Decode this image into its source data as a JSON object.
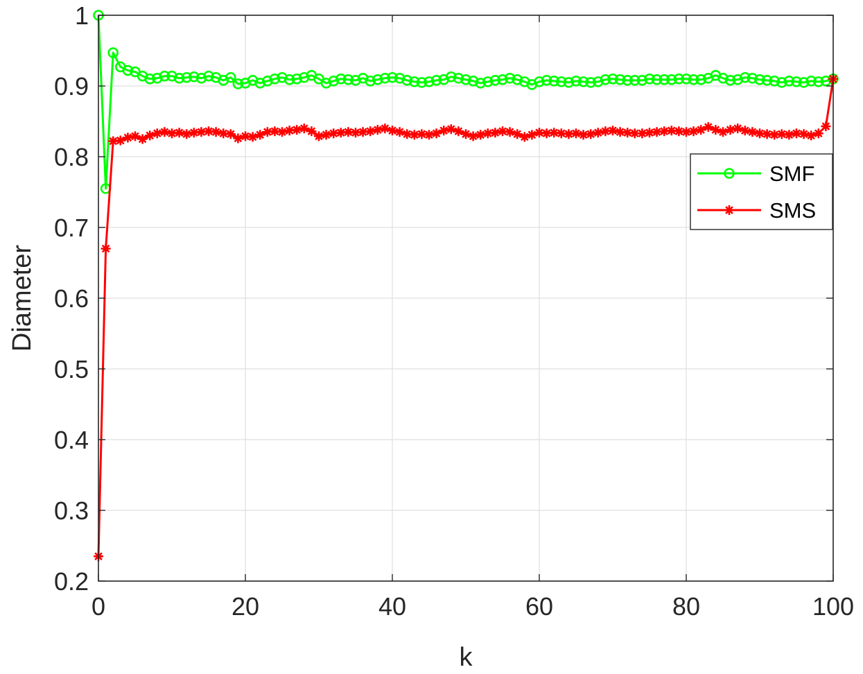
{
  "chart_data": {
    "type": "line",
    "title": "",
    "xlabel": "k",
    "ylabel": "Diameter",
    "xlim": [
      0,
      100
    ],
    "ylim": [
      0.2,
      1
    ],
    "xticks": [
      0,
      20,
      40,
      60,
      80,
      100
    ],
    "xtick_labels": [
      "0",
      "20",
      "40",
      "60",
      "80",
      "100"
    ],
    "yticks": [
      0.2,
      0.3,
      0.4,
      0.5,
      0.6,
      0.7,
      0.8,
      0.9,
      1
    ],
    "ytick_labels": [
      "0.2",
      "0.3",
      "0.4",
      "0.5",
      "0.6",
      "0.7",
      "0.8",
      "0.9",
      "1"
    ],
    "grid": true,
    "legend": "right",
    "x": [
      0,
      1,
      2,
      3,
      4,
      5,
      6,
      7,
      8,
      9,
      10,
      11,
      12,
      13,
      14,
      15,
      16,
      17,
      18,
      19,
      20,
      21,
      22,
      23,
      24,
      25,
      26,
      27,
      28,
      29,
      30,
      31,
      32,
      33,
      34,
      35,
      36,
      37,
      38,
      39,
      40,
      41,
      42,
      43,
      44,
      45,
      46,
      47,
      48,
      49,
      50,
      51,
      52,
      53,
      54,
      55,
      56,
      57,
      58,
      59,
      60,
      61,
      62,
      63,
      64,
      65,
      66,
      67,
      68,
      69,
      70,
      71,
      72,
      73,
      74,
      75,
      76,
      77,
      78,
      79,
      80,
      81,
      82,
      83,
      84,
      85,
      86,
      87,
      88,
      89,
      90,
      91,
      92,
      93,
      94,
      95,
      96,
      97,
      98,
      99,
      100
    ],
    "series": [
      {
        "name": "SMF",
        "color": "#00ff00",
        "marker": "circle",
        "values": [
          1.0,
          0.755,
          0.947,
          0.927,
          0.922,
          0.92,
          0.914,
          0.91,
          0.911,
          0.914,
          0.914,
          0.911,
          0.912,
          0.913,
          0.911,
          0.914,
          0.912,
          0.908,
          0.912,
          0.903,
          0.904,
          0.908,
          0.904,
          0.907,
          0.91,
          0.912,
          0.909,
          0.91,
          0.912,
          0.915,
          0.91,
          0.904,
          0.907,
          0.91,
          0.909,
          0.908,
          0.911,
          0.907,
          0.909,
          0.911,
          0.912,
          0.911,
          0.908,
          0.906,
          0.905,
          0.906,
          0.908,
          0.909,
          0.913,
          0.911,
          0.909,
          0.907,
          0.904,
          0.906,
          0.908,
          0.909,
          0.911,
          0.909,
          0.906,
          0.902,
          0.906,
          0.908,
          0.907,
          0.906,
          0.905,
          0.907,
          0.906,
          0.905,
          0.906,
          0.909,
          0.91,
          0.909,
          0.908,
          0.908,
          0.908,
          0.91,
          0.909,
          0.909,
          0.909,
          0.91,
          0.91,
          0.909,
          0.909,
          0.911,
          0.915,
          0.911,
          0.908,
          0.909,
          0.912,
          0.911,
          0.909,
          0.908,
          0.907,
          0.905,
          0.907,
          0.906,
          0.905,
          0.907,
          0.906,
          0.907,
          0.91
        ]
      },
      {
        "name": "SMS",
        "color": "#ff0000",
        "marker": "asterisk",
        "values": [
          0.235,
          0.67,
          0.822,
          0.823,
          0.827,
          0.829,
          0.825,
          0.83,
          0.833,
          0.835,
          0.833,
          0.834,
          0.832,
          0.834,
          0.835,
          0.836,
          0.835,
          0.833,
          0.832,
          0.826,
          0.829,
          0.828,
          0.831,
          0.835,
          0.836,
          0.835,
          0.837,
          0.838,
          0.84,
          0.836,
          0.829,
          0.831,
          0.833,
          0.834,
          0.835,
          0.834,
          0.835,
          0.836,
          0.838,
          0.84,
          0.837,
          0.835,
          0.832,
          0.831,
          0.832,
          0.831,
          0.833,
          0.837,
          0.839,
          0.836,
          0.832,
          0.829,
          0.831,
          0.833,
          0.834,
          0.836,
          0.835,
          0.832,
          0.828,
          0.831,
          0.834,
          0.833,
          0.834,
          0.833,
          0.832,
          0.833,
          0.831,
          0.832,
          0.834,
          0.836,
          0.837,
          0.835,
          0.834,
          0.833,
          0.833,
          0.834,
          0.835,
          0.836,
          0.837,
          0.836,
          0.835,
          0.836,
          0.838,
          0.842,
          0.838,
          0.835,
          0.838,
          0.84,
          0.837,
          0.835,
          0.833,
          0.832,
          0.831,
          0.832,
          0.831,
          0.833,
          0.832,
          0.83,
          0.833,
          0.843,
          0.91
        ]
      }
    ]
  }
}
